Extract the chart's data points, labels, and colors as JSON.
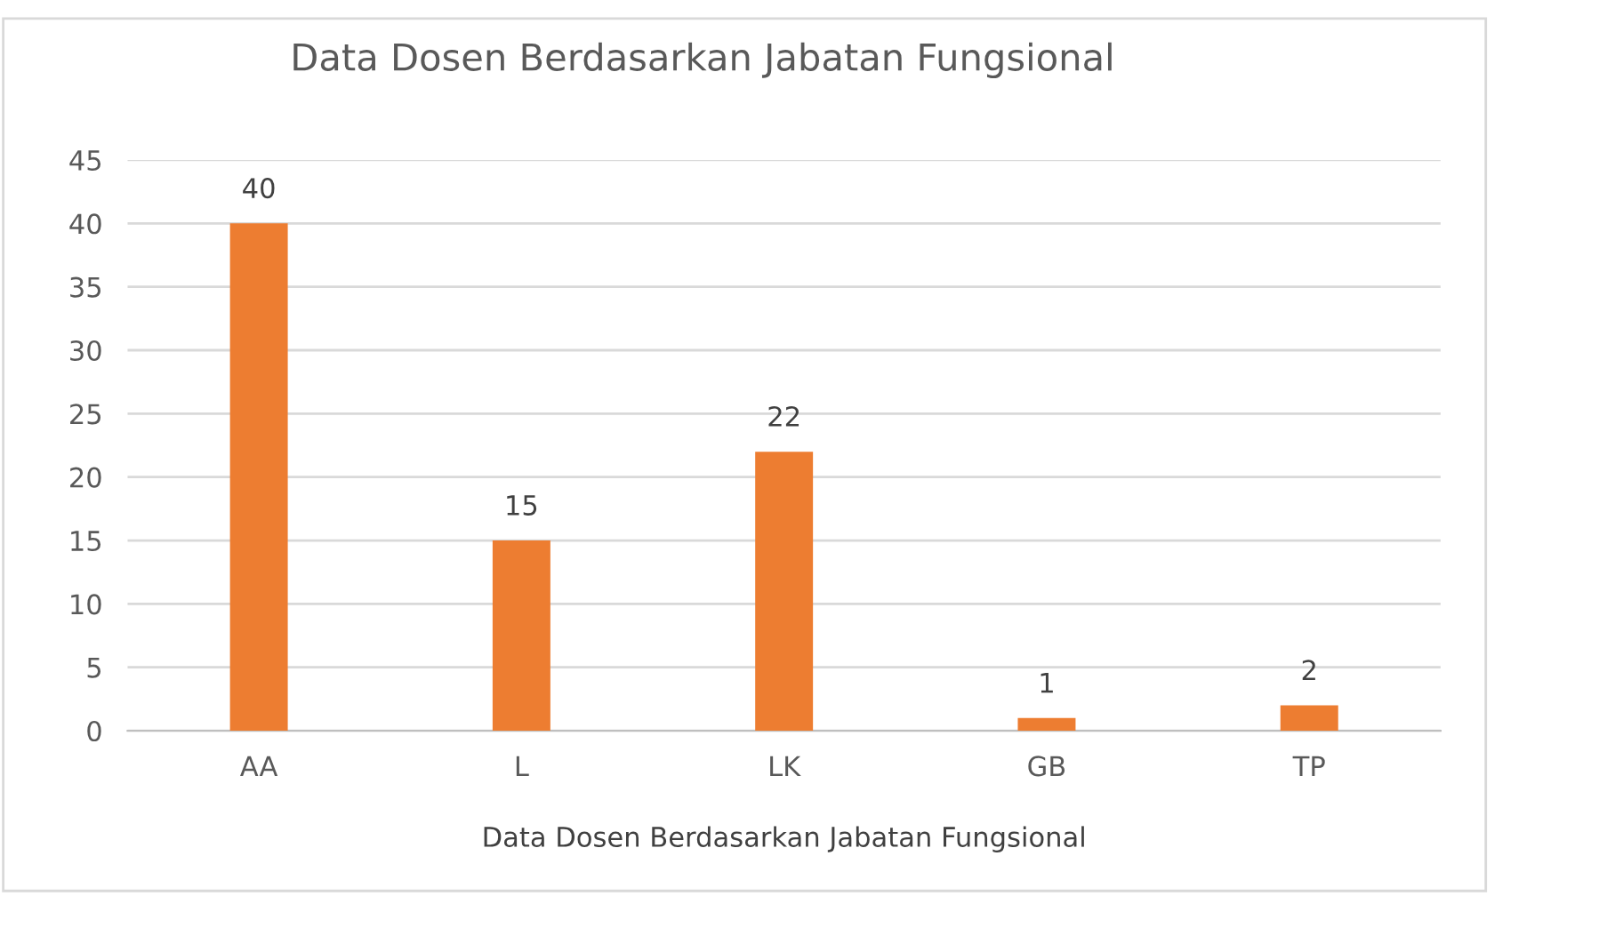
{
  "chart_data": {
    "type": "bar",
    "title": "Data Dosen Berdasarkan Jabatan Fungsional",
    "xlabel": "Data Dosen Berdasarkan Jabatan Fungsional",
    "categories": [
      "AA",
      "L",
      "LK",
      "GB",
      "TP"
    ],
    "values": [
      40,
      15,
      22,
      1,
      2
    ],
    "color": "#ed7d31",
    "ylim": [
      0,
      45
    ],
    "yticks": [
      0,
      5,
      10,
      15,
      20,
      25,
      30,
      35,
      40,
      45
    ],
    "grid": "y",
    "data_labels": true,
    "legend": false
  }
}
